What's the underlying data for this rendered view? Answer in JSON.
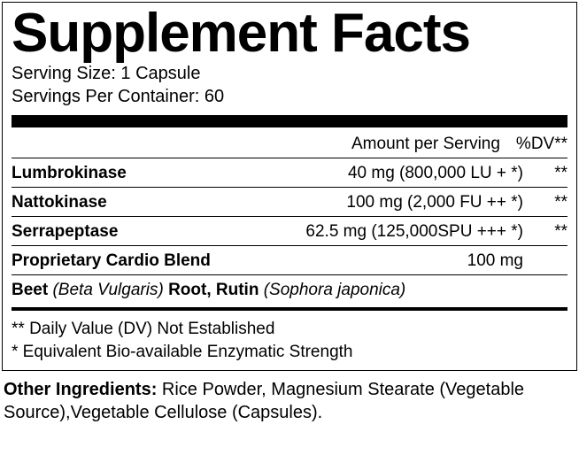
{
  "title": "Supplement Facts",
  "serving_size_label": "Serving Size: 1 Capsule",
  "servings_per_container_label": "Servings Per Container: 60",
  "header": {
    "amount": "Amount per Serving",
    "dv": "%DV**"
  },
  "rows": [
    {
      "name": "Lumbrokinase",
      "amount": "40 mg (800,000 LU + *)",
      "dv": "**"
    },
    {
      "name": "Nattokinase",
      "amount": "100 mg (2,000 FU ++ *)",
      "dv": "**"
    },
    {
      "name": "Serrapeptase",
      "amount": "62.5 mg (125,000SPU +++ *)",
      "dv": "**"
    },
    {
      "name": "Proprietary Cardio Blend",
      "amount": "100 mg",
      "dv": ""
    }
  ],
  "blend_detail": {
    "p1": "Beet ",
    "p2": "(Beta Vulgaris) ",
    "p3": "Root, Rutin ",
    "p4": "(Sophora japonica)"
  },
  "notes": {
    "line1": "** Daily Value (DV) Not Established",
    "line2": " * Equivalent Bio-available Enzymatic Strength"
  },
  "other": {
    "label": "Other Ingredients: ",
    "text": "Rice Powder, Magnesium Stearate (Vegetable Source),Vegetable Cellulose (Capsules)."
  },
  "colors": {
    "text": "#000000",
    "background": "#ffffff",
    "rule": "#000000"
  },
  "fonts": {
    "title_size": 62,
    "body_size": 19
  }
}
